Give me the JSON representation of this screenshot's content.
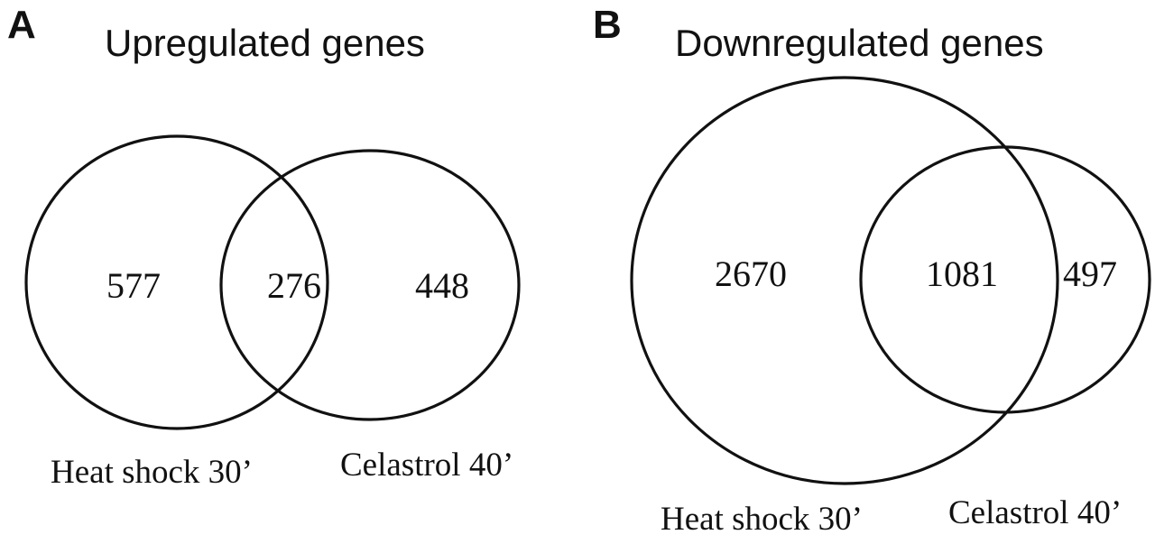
{
  "panels": [
    {
      "letter": "A",
      "title": "Upregulated genes",
      "sets": [
        {
          "label": "Heat shock 30’"
        },
        {
          "label": "Celastrol 40’"
        }
      ],
      "counts": {
        "only_first": "577",
        "intersection": "276",
        "only_second": "448"
      }
    },
    {
      "letter": "B",
      "title": "Downregulated genes",
      "sets": [
        {
          "label": "Heat shock 30’"
        },
        {
          "label": "Celastrol 40’"
        }
      ],
      "counts": {
        "only_first": "2670",
        "intersection": "1081",
        "only_second": "497"
      }
    }
  ]
}
